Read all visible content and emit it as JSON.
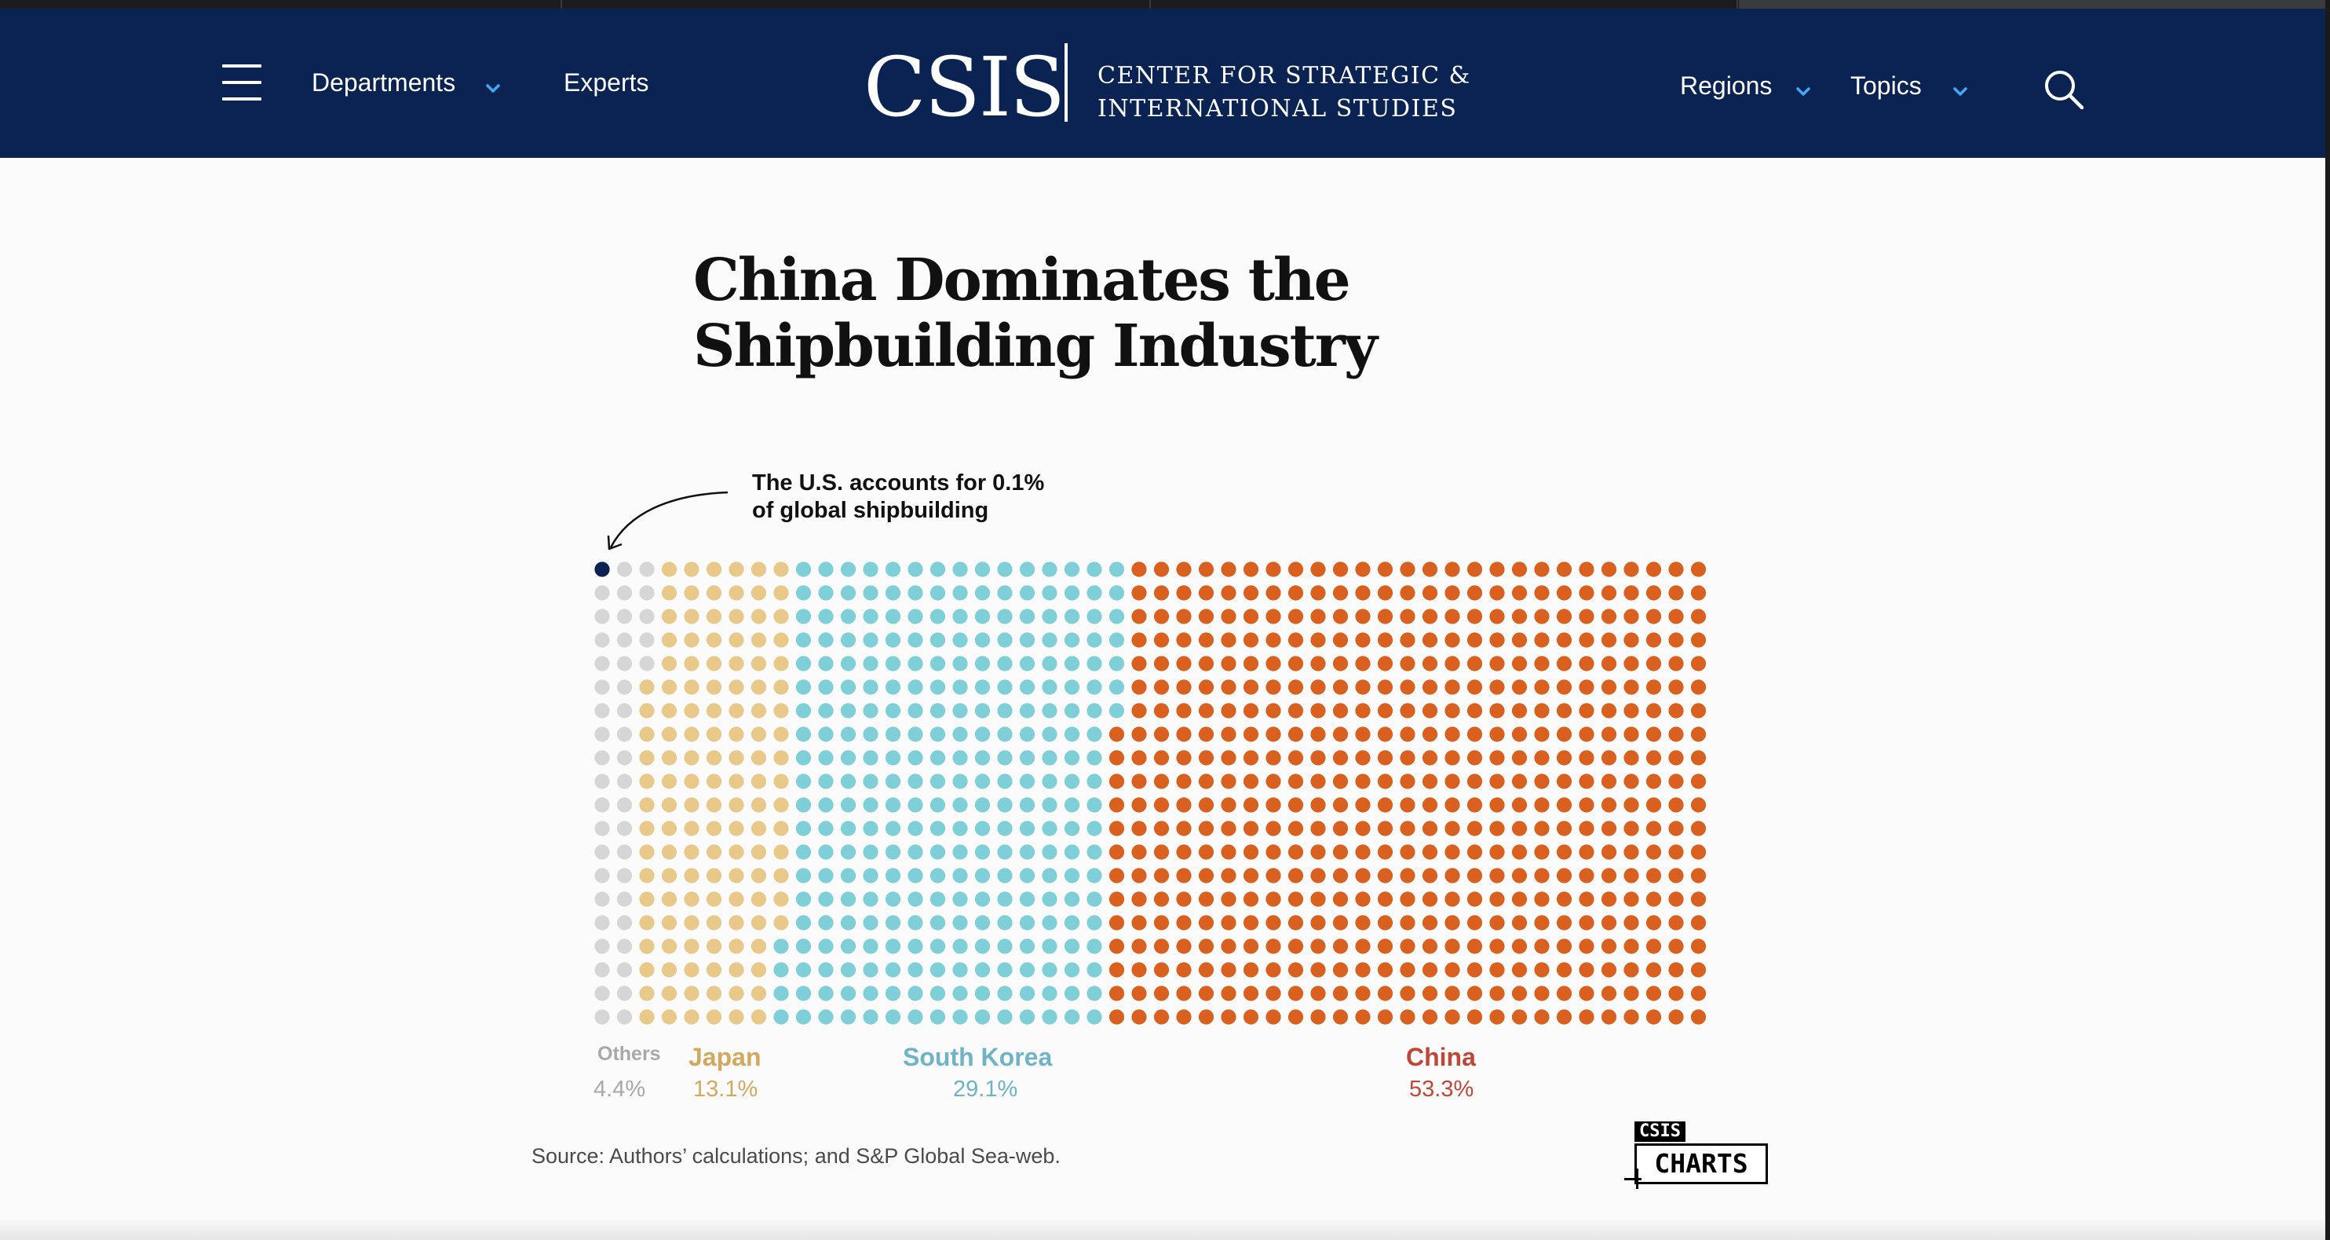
{
  "header": {
    "nav_left": [
      {
        "label": "Departments",
        "has_dropdown": true
      },
      {
        "label": "Experts",
        "has_dropdown": false
      }
    ],
    "logo_word": "CSIS",
    "logo_tagline_line1": "CENTER FOR STRATEGIC &",
    "logo_tagline_line2": "INTERNATIONAL STUDIES",
    "nav_right": [
      {
        "label": "Regions",
        "has_dropdown": true
      },
      {
        "label": "Topics",
        "has_dropdown": true
      }
    ],
    "search_icon": "search-icon",
    "menu_icon": "hamburger-icon",
    "colors": {
      "navy": "#0a2352",
      "chevron": "#3fa9f5"
    }
  },
  "chart_data": {
    "type": "waffle",
    "title_line1": "China Dominates the",
    "title_line2": "Shipbuilding Industry",
    "annotation_line1": "The U.S. accounts for 0.1%",
    "annotation_line2": "of global shipbuilding",
    "grid_rows": 20,
    "grid_cols": 50,
    "categories": [
      {
        "name": "U.S.",
        "percent": 0.1,
        "label": "",
        "color": "#0a2352",
        "show_label": false
      },
      {
        "name": "Others",
        "percent": 4.4,
        "label": "4.4%",
        "color": "#d6d6d6",
        "name_color": "#a8a8a8",
        "value_color": "#a8a8a8",
        "show_label": true
      },
      {
        "name": "Japan",
        "percent": 13.1,
        "label": "13.1%",
        "color": "#e8c98a",
        "name_color": "#d2a95e",
        "value_color": "#d2a95e",
        "show_label": true
      },
      {
        "name": "South Korea",
        "percent": 29.1,
        "label": "29.1%",
        "color": "#7ecfd8",
        "name_color": "#6fb3c6",
        "value_color": "#6fb3c6",
        "show_label": true
      },
      {
        "name": "China",
        "percent": 53.3,
        "label": "53.3%",
        "color": "#d9601e",
        "name_color": "#c0463a",
        "value_color": "#c0463a",
        "show_label": true
      }
    ]
  },
  "footer": {
    "source": "Source: Authors’ calculations; and S&P Global Sea-web.",
    "badge_top": "CSIS",
    "badge_main": "CHARTS"
  }
}
